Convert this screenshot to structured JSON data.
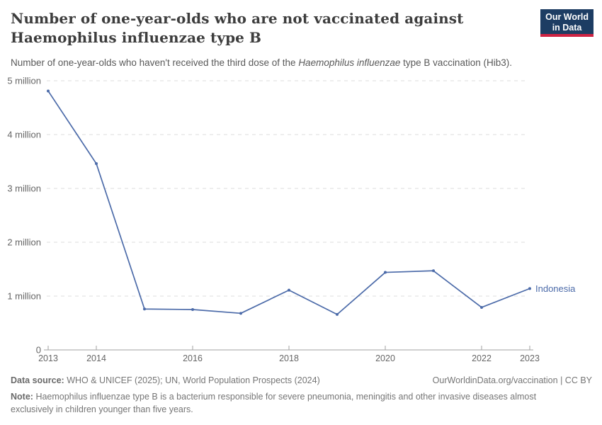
{
  "header": {
    "title_line1": "Number of one-year-olds who are not vaccinated against",
    "title_line2": "Haemophilus influenzae type B",
    "subtitle_prefix": "Number of one-year-olds who haven't received the third dose of the ",
    "subtitle_italic": "Haemophilus influenzae",
    "subtitle_suffix": " type B vaccination (Hib3)."
  },
  "logo": {
    "line1": "Our World",
    "line2": "in Data",
    "bg_color": "#1d3d63",
    "stripe_color": "#cf2343"
  },
  "chart_data": {
    "type": "line",
    "x": [
      2013,
      2014,
      2015,
      2016,
      2017,
      2018,
      2019,
      2020,
      2021,
      2022,
      2023
    ],
    "series": [
      {
        "name": "Indonesia",
        "color": "#4c6ba9",
        "values": [
          4.81,
          3.46,
          0.76,
          0.75,
          0.68,
          1.11,
          0.66,
          1.44,
          1.47,
          0.79,
          1.14
        ]
      }
    ],
    "unit": "million",
    "xlim": [
      2013,
      2023
    ],
    "ylim": [
      0,
      5
    ],
    "x_ticks": [
      2013,
      2014,
      2016,
      2018,
      2020,
      2022,
      2023
    ],
    "y_ticks": [
      {
        "value": 0,
        "label": "0"
      },
      {
        "value": 1,
        "label": "1 million"
      },
      {
        "value": 2,
        "label": "2 million"
      },
      {
        "value": 3,
        "label": "3 million"
      },
      {
        "value": 4,
        "label": "4 million"
      },
      {
        "value": 5,
        "label": "5 million"
      }
    ],
    "grid": "horizontal-dashed",
    "legend_position": "line-end-label",
    "grid_color": "#dcdcdc",
    "axis_color": "#a0a0a0",
    "tick_label_color": "#666666"
  },
  "footer": {
    "source_label": "Data source:",
    "source_text": "WHO & UNICEF (2025); UN, World Population Prospects (2024)",
    "link": "OurWorldinData.org/vaccination",
    "divider": " | ",
    "license": "CC BY",
    "note_label": "Note:",
    "note_text": "Haemophilus influenzae type B is a bacterium responsible for severe pneumonia, meningitis and other invasive diseases almost exclusively in children younger than five years."
  }
}
